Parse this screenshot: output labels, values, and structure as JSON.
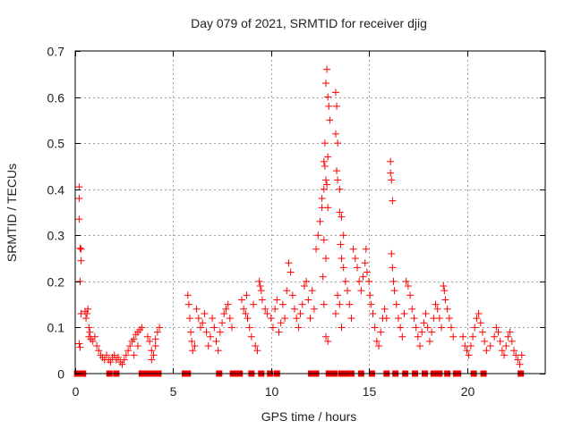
{
  "chart_data": {
    "type": "scatter",
    "title": "Day 079 of 2021, SRMTID for receiver djig",
    "xlabel": "GPS time / hours",
    "ylabel": "SRMTID / TECUs",
    "xlim": [
      0,
      24
    ],
    "ylim": [
      0,
      0.7
    ],
    "xticks": [
      0,
      5,
      10,
      15,
      20
    ],
    "xtick_labels": [
      "0",
      "5",
      "10",
      "15",
      "20"
    ],
    "yticks": [
      0,
      0.1,
      0.2,
      0.3,
      0.4,
      0.5,
      0.6,
      0.7
    ],
    "ytick_labels": [
      "0",
      "0.1",
      "0.2",
      "0.3",
      "0.4",
      "0.5",
      "0.6",
      "0.7"
    ],
    "grid": true,
    "legend": "none",
    "marker_color": "#ff0000",
    "series": [
      {
        "name": "SRMTID",
        "marker": "plus",
        "points": [
          [
            0.2,
            0.405
          ],
          [
            0.2,
            0.38
          ],
          [
            0.2,
            0.335
          ],
          [
            0.25,
            0.272
          ],
          [
            0.3,
            0.27
          ],
          [
            0.3,
            0.245
          ],
          [
            0.25,
            0.2
          ],
          [
            0.2,
            0.065
          ],
          [
            0.25,
            0.057
          ],
          [
            0.3,
            0.13
          ],
          [
            0.5,
            0.135
          ],
          [
            0.55,
            0.12
          ],
          [
            0.6,
            0.13
          ],
          [
            0.65,
            0.14
          ],
          [
            0.7,
            0.1
          ],
          [
            0.7,
            0.08
          ],
          [
            0.75,
            0.09
          ],
          [
            0.8,
            0.075
          ],
          [
            0.9,
            0.07
          ],
          [
            1.0,
            0.08
          ],
          [
            1.1,
            0.06
          ],
          [
            1.2,
            0.05
          ],
          [
            1.3,
            0.04
          ],
          [
            1.4,
            0.035
          ],
          [
            1.5,
            0.03
          ],
          [
            1.6,
            0.04
          ],
          [
            1.7,
            0.03
          ],
          [
            1.8,
            0.025
          ],
          [
            1.9,
            0.035
          ],
          [
            2.0,
            0.04
          ],
          [
            2.1,
            0.03
          ],
          [
            2.2,
            0.035
          ],
          [
            2.3,
            0.025
          ],
          [
            2.4,
            0.02
          ],
          [
            2.5,
            0.03
          ],
          [
            2.6,
            0.04
          ],
          [
            2.7,
            0.05
          ],
          [
            2.8,
            0.06
          ],
          [
            2.9,
            0.07
          ],
          [
            3.0,
            0.075
          ],
          [
            3.1,
            0.085
          ],
          [
            3.2,
            0.09
          ],
          [
            3.3,
            0.095
          ],
          [
            3.4,
            0.1
          ],
          [
            3.0,
            0.04
          ],
          [
            3.2,
            0.06
          ],
          [
            3.7,
            0.08
          ],
          [
            3.8,
            0.07
          ],
          [
            3.9,
            0.05
          ],
          [
            4.0,
            0.04
          ],
          [
            4.1,
            0.06
          ],
          [
            4.2,
            0.09
          ],
          [
            4.3,
            0.1
          ],
          [
            4.1,
            0.075
          ],
          [
            3.9,
            0.03
          ],
          [
            5.75,
            0.17
          ],
          [
            5.8,
            0.15
          ],
          [
            5.85,
            0.12
          ],
          [
            5.9,
            0.09
          ],
          [
            5.95,
            0.07
          ],
          [
            6.0,
            0.05
          ],
          [
            6.1,
            0.06
          ],
          [
            6.2,
            0.14
          ],
          [
            6.3,
            0.12
          ],
          [
            6.4,
            0.1
          ],
          [
            6.5,
            0.11
          ],
          [
            6.6,
            0.13
          ],
          [
            6.7,
            0.09
          ],
          [
            6.8,
            0.06
          ],
          [
            6.9,
            0.08
          ],
          [
            7.0,
            0.12
          ],
          [
            7.1,
            0.1
          ],
          [
            7.2,
            0.07
          ],
          [
            7.3,
            0.05
          ],
          [
            7.4,
            0.09
          ],
          [
            7.5,
            0.11
          ],
          [
            7.6,
            0.13
          ],
          [
            7.7,
            0.14
          ],
          [
            7.8,
            0.15
          ],
          [
            7.9,
            0.12
          ],
          [
            8.0,
            0.1
          ],
          [
            8.5,
            0.16
          ],
          [
            8.6,
            0.14
          ],
          [
            8.7,
            0.13
          ],
          [
            8.75,
            0.17
          ],
          [
            8.8,
            0.12
          ],
          [
            8.9,
            0.1
          ],
          [
            9.0,
            0.08
          ],
          [
            9.1,
            0.15
          ],
          [
            9.2,
            0.06
          ],
          [
            9.3,
            0.05
          ],
          [
            9.4,
            0.2
          ],
          [
            9.45,
            0.19
          ],
          [
            9.5,
            0.18
          ],
          [
            9.55,
            0.16
          ],
          [
            9.7,
            0.14
          ],
          [
            9.8,
            0.13
          ],
          [
            10.0,
            0.12
          ],
          [
            10.1,
            0.1
          ],
          [
            10.2,
            0.14
          ],
          [
            10.3,
            0.16
          ],
          [
            10.4,
            0.09
          ],
          [
            10.5,
            0.11
          ],
          [
            10.6,
            0.15
          ],
          [
            10.7,
            0.12
          ],
          [
            10.8,
            0.18
          ],
          [
            10.9,
            0.24
          ],
          [
            11.0,
            0.22
          ],
          [
            11.1,
            0.17
          ],
          [
            11.2,
            0.14
          ],
          [
            11.3,
            0.12
          ],
          [
            11.4,
            0.1
          ],
          [
            11.5,
            0.13
          ],
          [
            11.6,
            0.15
          ],
          [
            11.7,
            0.19
          ],
          [
            11.8,
            0.2
          ],
          [
            11.9,
            0.16
          ],
          [
            12.0,
            0.12
          ],
          [
            12.1,
            0.18
          ],
          [
            12.2,
            0.14
          ],
          [
            12.3,
            0.27
          ],
          [
            12.4,
            0.3
          ],
          [
            12.5,
            0.33
          ],
          [
            12.6,
            0.36
          ],
          [
            12.7,
            0.46
          ],
          [
            12.75,
            0.5
          ],
          [
            12.8,
            0.63
          ],
          [
            12.85,
            0.66
          ],
          [
            12.9,
            0.6
          ],
          [
            12.95,
            0.58
          ],
          [
            13.0,
            0.55
          ],
          [
            12.7,
            0.4
          ],
          [
            12.8,
            0.42
          ],
          [
            12.6,
            0.38
          ],
          [
            12.9,
            0.47
          ],
          [
            12.75,
            0.45
          ],
          [
            12.85,
            0.41
          ],
          [
            12.9,
            0.36
          ],
          [
            12.7,
            0.29
          ],
          [
            12.8,
            0.25
          ],
          [
            12.65,
            0.21
          ],
          [
            12.7,
            0.15
          ],
          [
            12.8,
            0.08
          ],
          [
            12.9,
            0.07
          ],
          [
            13.3,
            0.61
          ],
          [
            13.35,
            0.58
          ],
          [
            13.4,
            0.5
          ],
          [
            13.3,
            0.52
          ],
          [
            13.35,
            0.44
          ],
          [
            13.4,
            0.42
          ],
          [
            13.5,
            0.4
          ],
          [
            13.5,
            0.35
          ],
          [
            13.6,
            0.34
          ],
          [
            13.7,
            0.3
          ],
          [
            13.55,
            0.28
          ],
          [
            13.6,
            0.25
          ],
          [
            13.7,
            0.23
          ],
          [
            13.8,
            0.2
          ],
          [
            13.9,
            0.18
          ],
          [
            14.0,
            0.15
          ],
          [
            14.1,
            0.12
          ],
          [
            13.4,
            0.17
          ],
          [
            13.5,
            0.15
          ],
          [
            13.3,
            0.13
          ],
          [
            13.6,
            0.1
          ],
          [
            14.2,
            0.27
          ],
          [
            14.3,
            0.25
          ],
          [
            14.4,
            0.23
          ],
          [
            14.5,
            0.2
          ],
          [
            14.6,
            0.18
          ],
          [
            14.7,
            0.21
          ],
          [
            14.8,
            0.24
          ],
          [
            14.85,
            0.27
          ],
          [
            14.9,
            0.22
          ],
          [
            15.0,
            0.2
          ],
          [
            15.05,
            0.17
          ],
          [
            15.1,
            0.15
          ],
          [
            15.2,
            0.13
          ],
          [
            15.3,
            0.1
          ],
          [
            15.4,
            0.07
          ],
          [
            15.5,
            0.06
          ],
          [
            15.6,
            0.09
          ],
          [
            15.7,
            0.12
          ],
          [
            15.8,
            0.14
          ],
          [
            15.9,
            0.12
          ],
          [
            16.1,
            0.46
          ],
          [
            16.1,
            0.435
          ],
          [
            16.15,
            0.42
          ],
          [
            16.2,
            0.375
          ],
          [
            16.15,
            0.26
          ],
          [
            16.2,
            0.23
          ],
          [
            16.25,
            0.2
          ],
          [
            16.3,
            0.18
          ],
          [
            16.4,
            0.15
          ],
          [
            16.5,
            0.12
          ],
          [
            16.6,
            0.1
          ],
          [
            16.7,
            0.08
          ],
          [
            16.8,
            0.13
          ],
          [
            16.9,
            0.2
          ],
          [
            17.0,
            0.19
          ],
          [
            17.1,
            0.17
          ],
          [
            17.2,
            0.14
          ],
          [
            17.3,
            0.12
          ],
          [
            17.4,
            0.1
          ],
          [
            17.5,
            0.08
          ],
          [
            17.6,
            0.06
          ],
          [
            17.7,
            0.09
          ],
          [
            17.8,
            0.11
          ],
          [
            17.9,
            0.13
          ],
          [
            18.0,
            0.1
          ],
          [
            18.1,
            0.07
          ],
          [
            18.2,
            0.09
          ],
          [
            18.3,
            0.12
          ],
          [
            18.4,
            0.15
          ],
          [
            18.5,
            0.14
          ],
          [
            18.6,
            0.12
          ],
          [
            18.7,
            0.1
          ],
          [
            18.8,
            0.19
          ],
          [
            18.85,
            0.18
          ],
          [
            18.9,
            0.16
          ],
          [
            19.0,
            0.14
          ],
          [
            19.1,
            0.12
          ],
          [
            19.2,
            0.1
          ],
          [
            19.3,
            0.08
          ],
          [
            19.8,
            0.08
          ],
          [
            19.9,
            0.06
          ],
          [
            20.0,
            0.05
          ],
          [
            20.1,
            0.04
          ],
          [
            20.2,
            0.06
          ],
          [
            20.3,
            0.08
          ],
          [
            20.4,
            0.1
          ],
          [
            20.5,
            0.12
          ],
          [
            20.6,
            0.13
          ],
          [
            20.7,
            0.11
          ],
          [
            20.8,
            0.09
          ],
          [
            20.9,
            0.07
          ],
          [
            21.0,
            0.05
          ],
          [
            21.2,
            0.06
          ],
          [
            21.4,
            0.08
          ],
          [
            21.5,
            0.1
          ],
          [
            21.6,
            0.09
          ],
          [
            21.7,
            0.07
          ],
          [
            21.8,
            0.05
          ],
          [
            21.9,
            0.04
          ],
          [
            22.0,
            0.06
          ],
          [
            22.1,
            0.08
          ],
          [
            22.2,
            0.09
          ],
          [
            22.3,
            0.07
          ],
          [
            22.4,
            0.05
          ],
          [
            22.5,
            0.04
          ],
          [
            22.6,
            0.03
          ],
          [
            22.7,
            0.02
          ],
          [
            22.8,
            0.04
          ]
        ]
      },
      {
        "name": "zero-values",
        "marker": "square",
        "x": [
          0.1,
          0.4,
          1.75,
          2.1,
          3.4,
          3.65,
          3.95,
          4.25,
          5.6,
          5.75,
          7.35,
          8.05,
          8.2,
          8.4,
          9.0,
          9.5,
          9.95,
          10.3,
          12.05,
          12.3,
          12.95,
          13.25,
          13.6,
          13.8,
          14.1,
          14.6,
          15.15,
          15.9,
          16.35,
          16.85,
          17.35,
          17.85,
          18.3,
          18.6,
          19.0,
          19.45,
          19.55,
          20.35,
          20.85,
          22.75
        ]
      }
    ]
  }
}
